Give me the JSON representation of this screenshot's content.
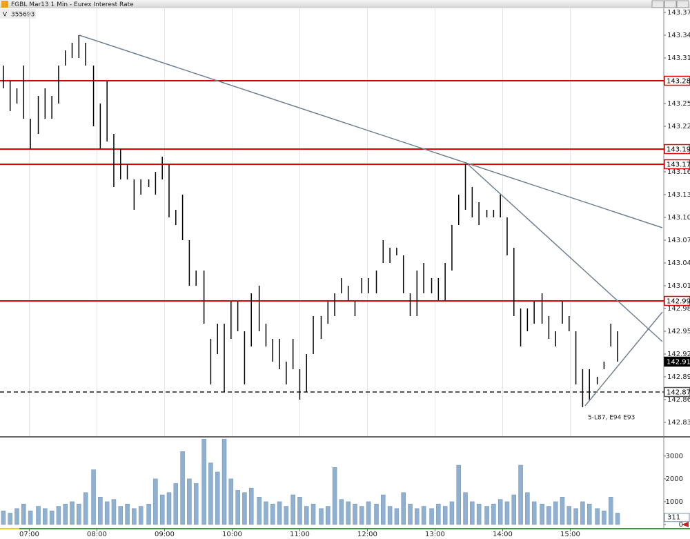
{
  "chart_data": {
    "type": "ohlc",
    "title": "FGBL Mar13 1 Min - Eurex Interest Rate",
    "volume_label": "V",
    "total_volume": 355693,
    "x": [
      397,
      403,
      409,
      415,
      421,
      428,
      434,
      440,
      446,
      452,
      458,
      464,
      470,
      477,
      483,
      489,
      495,
      501,
      507,
      513,
      519,
      526,
      532,
      538,
      544,
      550,
      556,
      562,
      568,
      575,
      581,
      587,
      593,
      599,
      605,
      611,
      617,
      624,
      630,
      636,
      642,
      648,
      654,
      660,
      666,
      672,
      679,
      685,
      691,
      697,
      703,
      709,
      715,
      721,
      728,
      734,
      740,
      746,
      752,
      758,
      764,
      770,
      777,
      783,
      789,
      795,
      801,
      807,
      813,
      819,
      826,
      832,
      838,
      844,
      850,
      856,
      862,
      868,
      875,
      881,
      887,
      893,
      899,
      905,
      911,
      917,
      924,
      930,
      936,
      942
    ],
    "high": [
      143.3,
      143.28,
      143.27,
      143.3,
      143.23,
      143.26,
      143.27,
      143.26,
      143.3,
      143.32,
      143.33,
      143.34,
      143.33,
      143.3,
      143.25,
      143.28,
      143.21,
      143.19,
      143.17,
      143.15,
      143.15,
      143.15,
      143.16,
      143.18,
      143.17,
      143.11,
      143.13,
      143.07,
      143.03,
      143.03,
      142.94,
      142.96,
      142.96,
      142.99,
      142.99,
      142.95,
      143.0,
      143.01,
      142.96,
      142.94,
      142.94,
      142.91,
      142.94,
      142.9,
      142.92,
      142.97,
      142.97,
      142.99,
      143.0,
      143.02,
      143.01,
      142.99,
      143.02,
      143.02,
      143.03,
      143.07,
      143.06,
      143.06,
      143.05,
      143.0,
      143.03,
      143.04,
      143.02,
      143.02,
      143.04,
      143.09,
      143.13,
      143.17,
      143.14,
      143.12,
      143.11,
      143.11,
      143.13,
      143.1,
      143.06,
      142.98,
      142.98,
      142.99,
      143.0,
      142.97,
      142.95,
      142.99,
      142.97,
      142.95,
      142.9,
      142.9,
      142.89,
      142.91,
      142.96,
      142.95
    ],
    "low": [
      143.27,
      143.24,
      143.25,
      143.23,
      143.19,
      143.21,
      143.23,
      143.23,
      143.25,
      143.3,
      143.31,
      143.31,
      143.3,
      143.22,
      143.19,
      143.2,
      143.14,
      143.15,
      143.15,
      143.11,
      143.13,
      143.14,
      143.13,
      143.15,
      143.1,
      143.09,
      143.07,
      143.01,
      143.01,
      142.96,
      142.88,
      142.92,
      142.87,
      142.94,
      142.95,
      142.88,
      142.93,
      142.95,
      142.93,
      142.91,
      142.9,
      142.88,
      142.9,
      142.86,
      142.87,
      142.92,
      142.94,
      142.96,
      142.97,
      143.0,
      142.99,
      142.97,
      143.0,
      143.0,
      143.0,
      143.04,
      143.04,
      143.05,
      143.0,
      142.97,
      142.97,
      143.0,
      143.0,
      142.99,
      142.99,
      143.03,
      143.09,
      143.11,
      143.1,
      143.09,
      143.1,
      143.1,
      143.1,
      143.05,
      142.97,
      142.93,
      142.95,
      142.96,
      142.96,
      142.94,
      142.93,
      142.96,
      142.95,
      142.88,
      142.85,
      142.86,
      142.88,
      142.9,
      142.93,
      142.91
    ],
    "color": "#000000",
    "xlim": [
      394,
      983
    ],
    "xticks": [
      {
        "value": 420,
        "label": "07:00"
      },
      {
        "value": 480,
        "label": "08:00"
      },
      {
        "value": 540,
        "label": "09:00"
      },
      {
        "value": 600,
        "label": "10:00"
      },
      {
        "value": 660,
        "label": "11:00"
      },
      {
        "value": 720,
        "label": "12:00"
      },
      {
        "value": 780,
        "label": "13:00"
      },
      {
        "value": 840,
        "label": "14:00"
      },
      {
        "value": 900,
        "label": "15:00"
      }
    ],
    "ylim": [
      142.81,
      143.38
    ],
    "yticks": [
      143.37,
      143.34,
      143.31,
      143.28,
      143.25,
      143.22,
      143.19,
      143.16,
      143.13,
      {
        "value": 143.1,
        "label": "143.10"
      },
      143.07,
      143.04,
      143.01,
      142.98,
      142.95,
      142.92,
      142.89,
      142.86,
      142.83
    ],
    "grid": true,
    "levels": [
      {
        "value": 143.28,
        "color": "#e00000"
      },
      {
        "value": 143.19,
        "color": "#e00000"
      },
      {
        "value": 143.17,
        "color": "#e00000"
      },
      {
        "value": 142.99,
        "color": "#e00000"
      }
    ],
    "dashed_level": 142.87,
    "last_price": 142.91,
    "annotation": "5-L87, E94 E93",
    "volume": {
      "values": [
        600,
        500,
        700,
        900,
        600,
        800,
        700,
        600,
        800,
        900,
        1000,
        900,
        1400,
        2400,
        1200,
        1000,
        1100,
        800,
        900,
        700,
        800,
        900,
        2000,
        1300,
        1400,
        1800,
        3200,
        2000,
        1800,
        3750,
        2700,
        2300,
        3750,
        2000,
        1500,
        1400,
        1600,
        1200,
        1000,
        900,
        1000,
        800,
        1300,
        1200,
        800,
        900,
        700,
        800,
        2500,
        1100,
        1000,
        900,
        800,
        1000,
        900,
        1300,
        800,
        700,
        1400,
        900,
        700,
        800,
        700,
        900,
        800,
        1000,
        2600,
        1400,
        1000,
        900,
        800,
        900,
        1100,
        1000,
        1300,
        2600,
        1400,
        1000,
        900,
        800,
        1000,
        1200,
        800,
        700,
        1000,
        900,
        700,
        600,
        1200,
        500
      ],
      "color": "#8fb0d0",
      "ylim": [
        0,
        3750
      ],
      "yticks": [
        0,
        1000,
        2000,
        3000
      ],
      "current": 311
    }
  }
}
